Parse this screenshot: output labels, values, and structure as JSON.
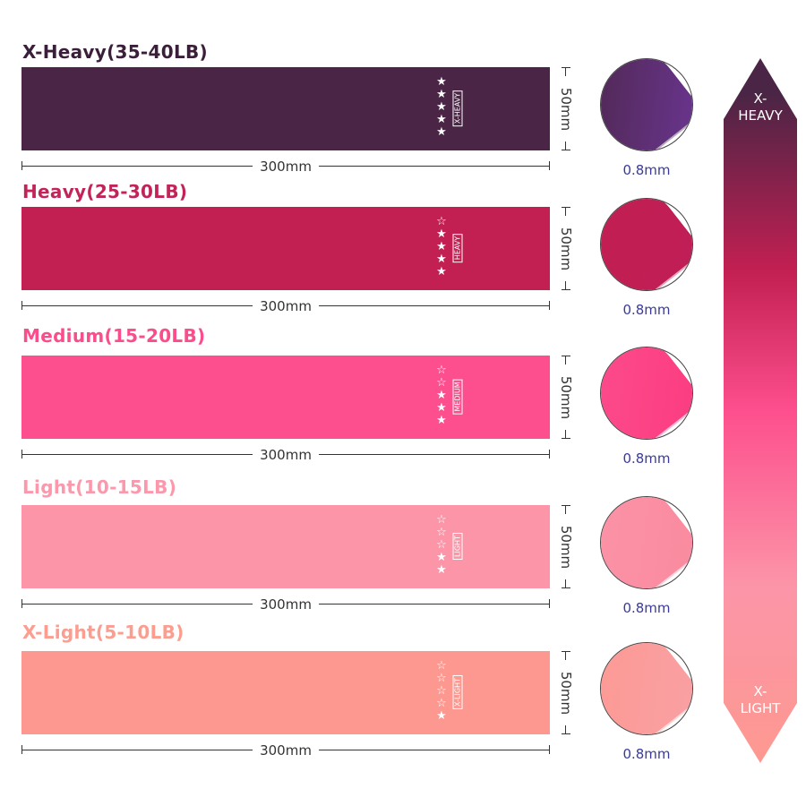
{
  "bands": [
    {
      "title": "X-Heavy(35-40LB)",
      "label": "X-HEAVY",
      "stars_filled": 5,
      "stars_total": 5,
      "color": "#4a2545",
      "title_color": "#3b1f3a",
      "width": "300mm",
      "height": "50mm",
      "thickness": "0.8mm"
    },
    {
      "title": "Heavy(25-30LB)",
      "label": "HEAVY",
      "stars_filled": 4,
      "stars_total": 5,
      "color": "#c21f52",
      "title_color": "#c2245a",
      "width": "300mm",
      "height": "50mm",
      "thickness": "0.8mm"
    },
    {
      "title": "Medium(15-20LB)",
      "label": "MEDIUM",
      "stars_filled": 3,
      "stars_total": 5,
      "color": "#fd4f8d",
      "title_color": "#fb4c8c",
      "width": "300mm",
      "height": "50mm",
      "thickness": "0.8mm"
    },
    {
      "title": "Light(10-15LB)",
      "label": "LIGHT",
      "stars_filled": 2,
      "stars_total": 5,
      "color": "#fc95a8",
      "title_color": "#fb98ab",
      "width": "300mm",
      "height": "50mm",
      "thickness": "0.8mm"
    },
    {
      "title": "X-Light(5-10LB)",
      "label": "X-LIGHT",
      "stars_filled": 1,
      "stars_total": 5,
      "color": "#fd9890",
      "title_color": "#fb9d8f",
      "width": "300mm",
      "height": "50mm",
      "thickness": "0.8mm"
    }
  ],
  "scale_arrow": {
    "top_label": "X-\nHEAVY",
    "bottom_label": "X-\nLIGHT",
    "gradient": [
      "#4a2545",
      "#c21f52",
      "#fd4f8d",
      "#fc95a8",
      "#fd9890"
    ]
  }
}
